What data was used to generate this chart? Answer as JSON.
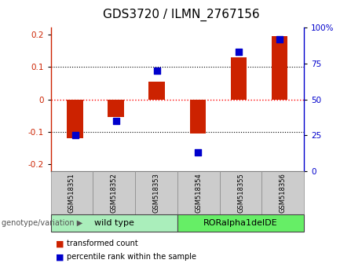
{
  "title": "GDS3720 / ILMN_2767156",
  "categories": [
    "GSM518351",
    "GSM518352",
    "GSM518353",
    "GSM518354",
    "GSM518355",
    "GSM518356"
  ],
  "red_values": [
    -0.12,
    -0.055,
    0.055,
    -0.105,
    0.13,
    0.195
  ],
  "blue_values": [
    25,
    35,
    70,
    13,
    83,
    92
  ],
  "ylim": [
    -0.22,
    0.22
  ],
  "yticks_left": [
    -0.2,
    -0.1,
    0.0,
    0.1,
    0.2
  ],
  "yticks_right": [
    0,
    25,
    50,
    75,
    100
  ],
  "right_axis_label_strs": [
    "0",
    "25",
    "50",
    "75",
    "100%"
  ],
  "bar_color": "#cc2200",
  "dot_color": "#0000cc",
  "group1_label": "wild type",
  "group2_label": "RORalpha1delDE",
  "group_bg1": "#aaeebb",
  "group_bg2": "#66ee66",
  "xlabel_area": "genotype/variation",
  "legend_red": "transformed count",
  "legend_blue": "percentile rank within the sample",
  "bar_width": 0.4,
  "dot_size": 40,
  "title_fontsize": 11,
  "tick_fontsize": 7.5,
  "label_fontsize": 8
}
